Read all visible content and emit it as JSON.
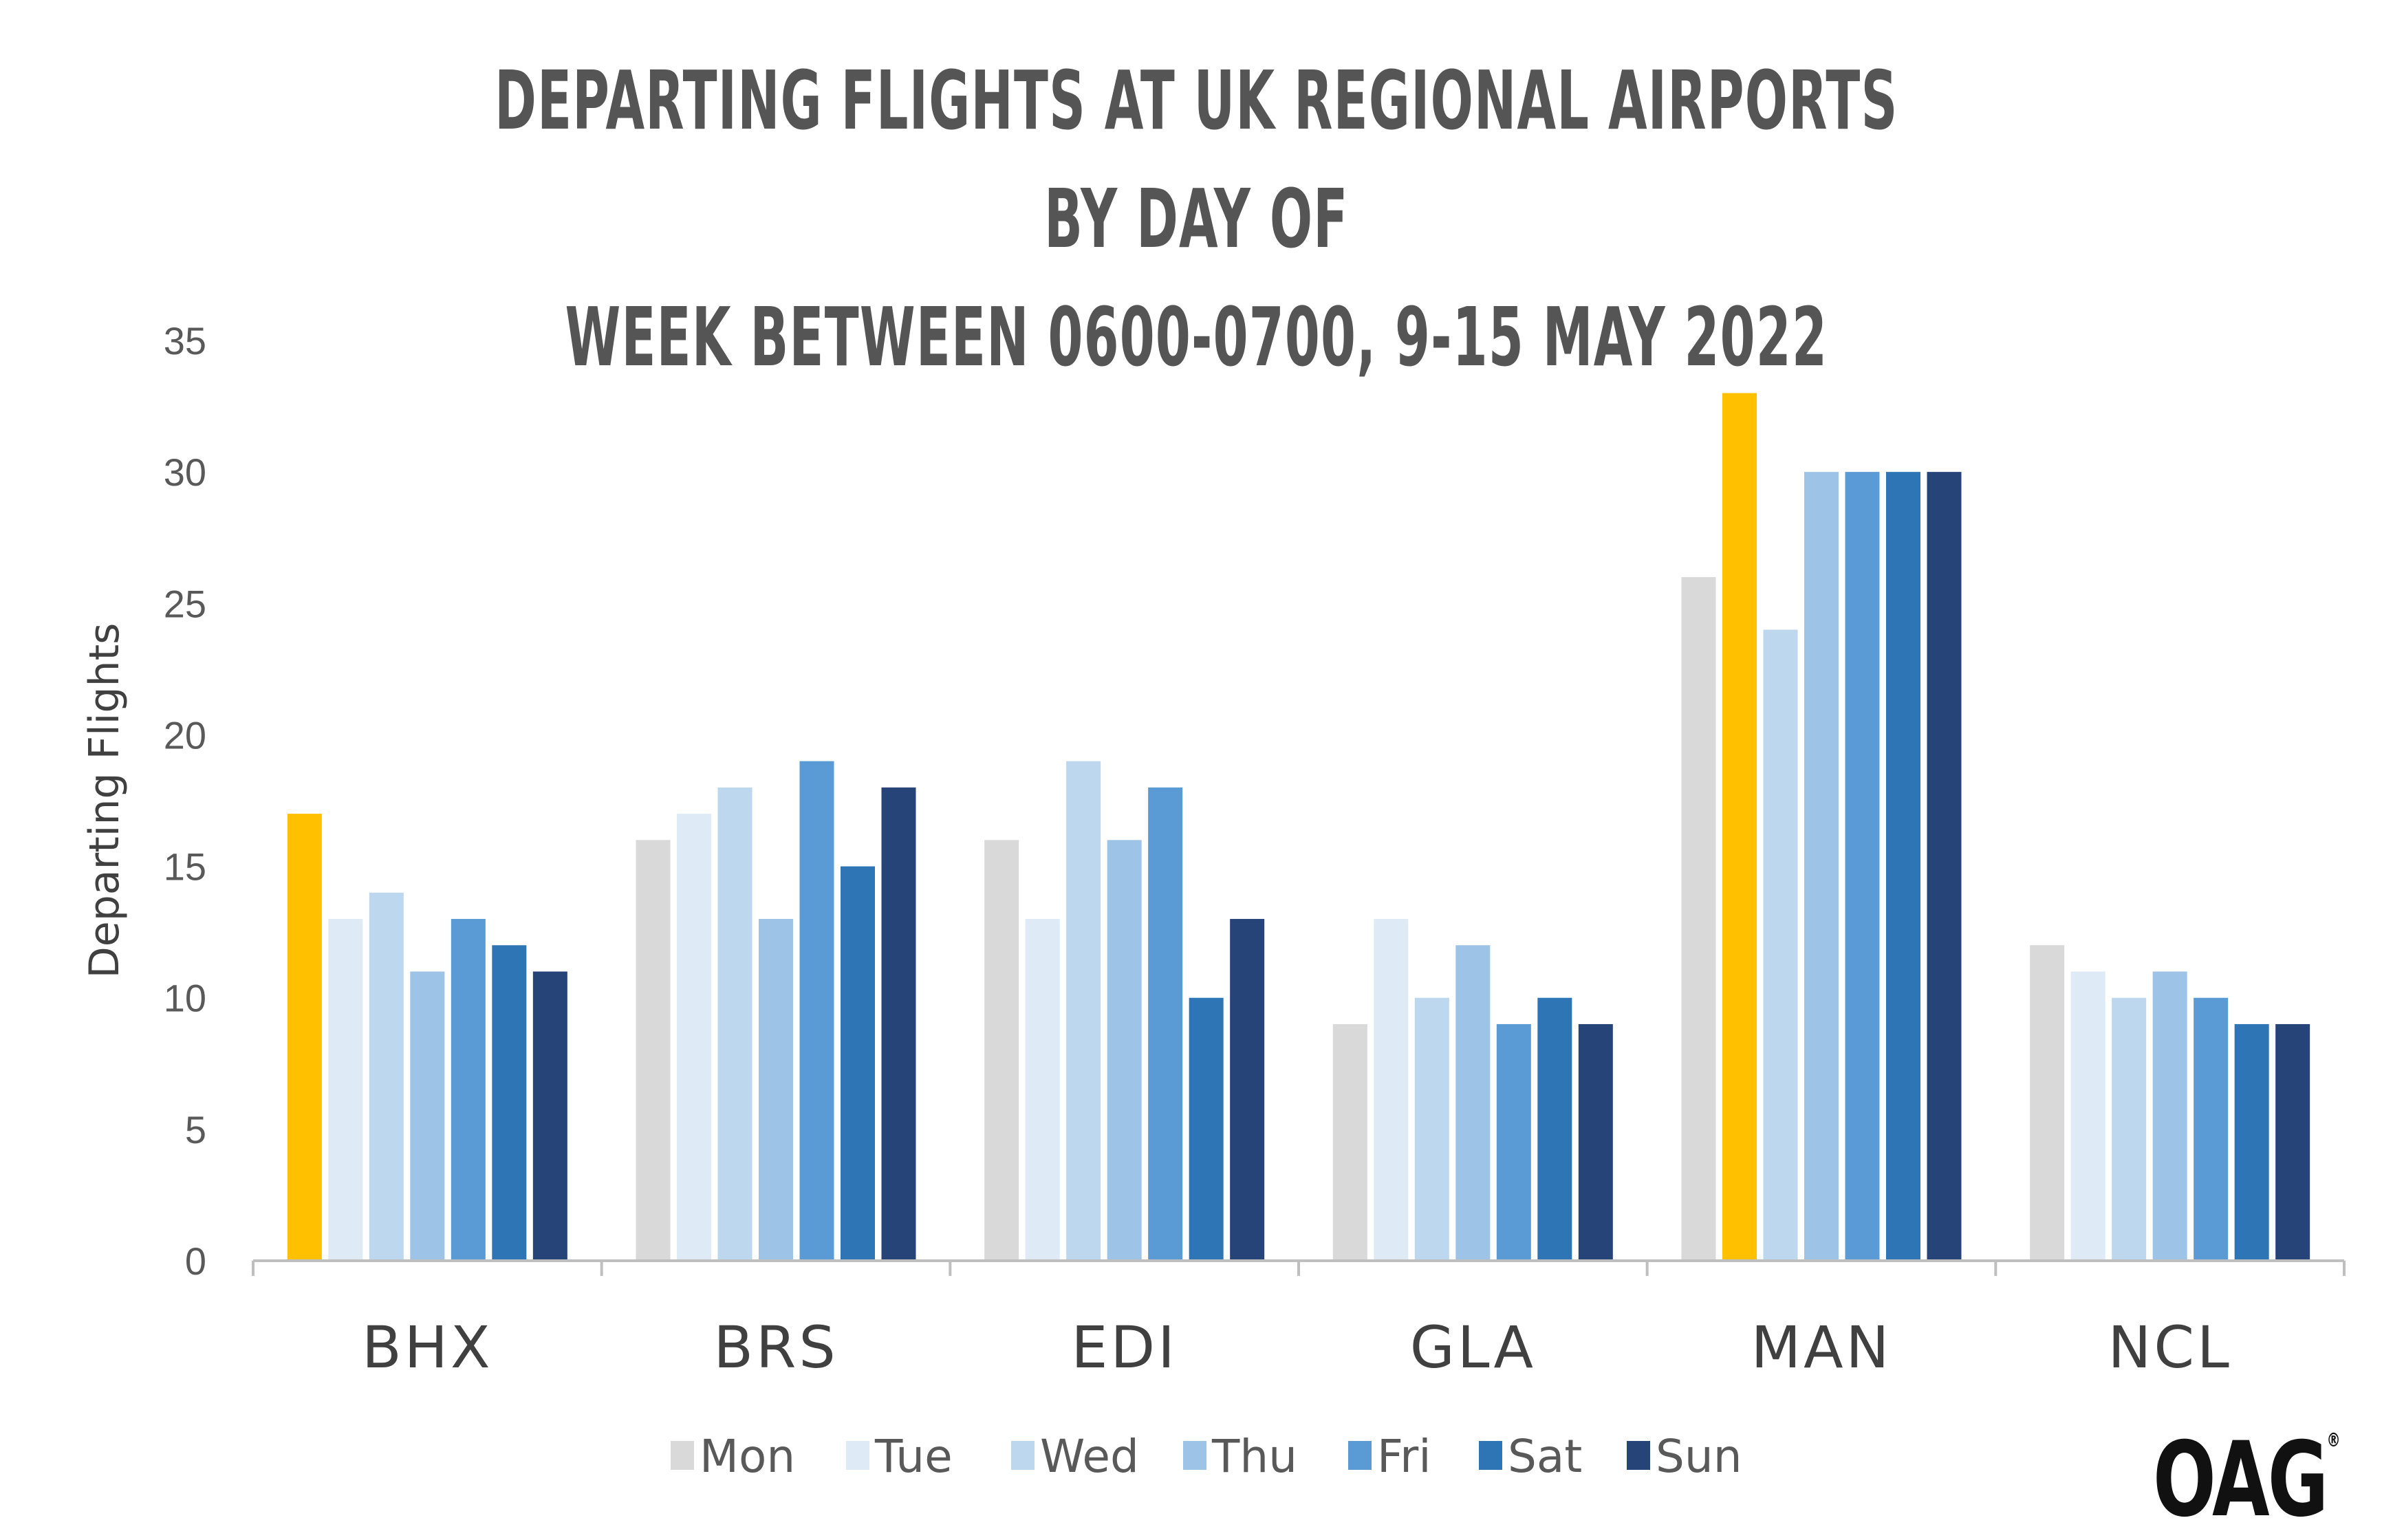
{
  "chart_data": {
    "type": "bar",
    "title_lines": [
      "DEPARTING FLIGHTS AT UK REGIONAL AIRPORTS BY DAY OF",
      "WEEK BETWEEN 0600-0700, 9-15 MAY 2022"
    ],
    "xlabel": "",
    "ylabel": "Departing Flights",
    "ylim": [
      0,
      35
    ],
    "yticks": [
      0,
      5,
      10,
      15,
      20,
      25,
      30,
      35
    ],
    "grid": false,
    "legend_position": "bottom",
    "categories": [
      "BHX",
      "BRS",
      "EDI",
      "GLA",
      "MAN",
      "NCL"
    ],
    "series": [
      {
        "name": "Mon",
        "color": "#d9d9d9",
        "values": [
          17,
          16,
          16,
          9,
          26,
          12
        ]
      },
      {
        "name": "Tue",
        "color": "#deebf7",
        "values": [
          13,
          17,
          13,
          13,
          33,
          11
        ]
      },
      {
        "name": "Wed",
        "color": "#bdd7ee",
        "values": [
          14,
          18,
          19,
          10,
          24,
          10
        ]
      },
      {
        "name": "Thu",
        "color": "#9dc3e6",
        "values": [
          11,
          13,
          16,
          12,
          30,
          11
        ]
      },
      {
        "name": "Fri",
        "color": "#5b9bd5",
        "values": [
          13,
          19,
          18,
          9,
          30,
          10
        ]
      },
      {
        "name": "Sat",
        "color": "#2e75b6",
        "values": [
          12,
          15,
          10,
          10,
          30,
          9
        ]
      },
      {
        "name": "Sun",
        "color": "#264478",
        "values": [
          11,
          18,
          13,
          9,
          30,
          9
        ]
      }
    ],
    "highlight": {
      "color": "#ffc000",
      "points": [
        {
          "category": "BHX",
          "series": "Mon"
        },
        {
          "category": "MAN",
          "series": "Tue"
        }
      ]
    }
  },
  "branding": {
    "logo_text": "OAG",
    "logo_mark": "®"
  }
}
